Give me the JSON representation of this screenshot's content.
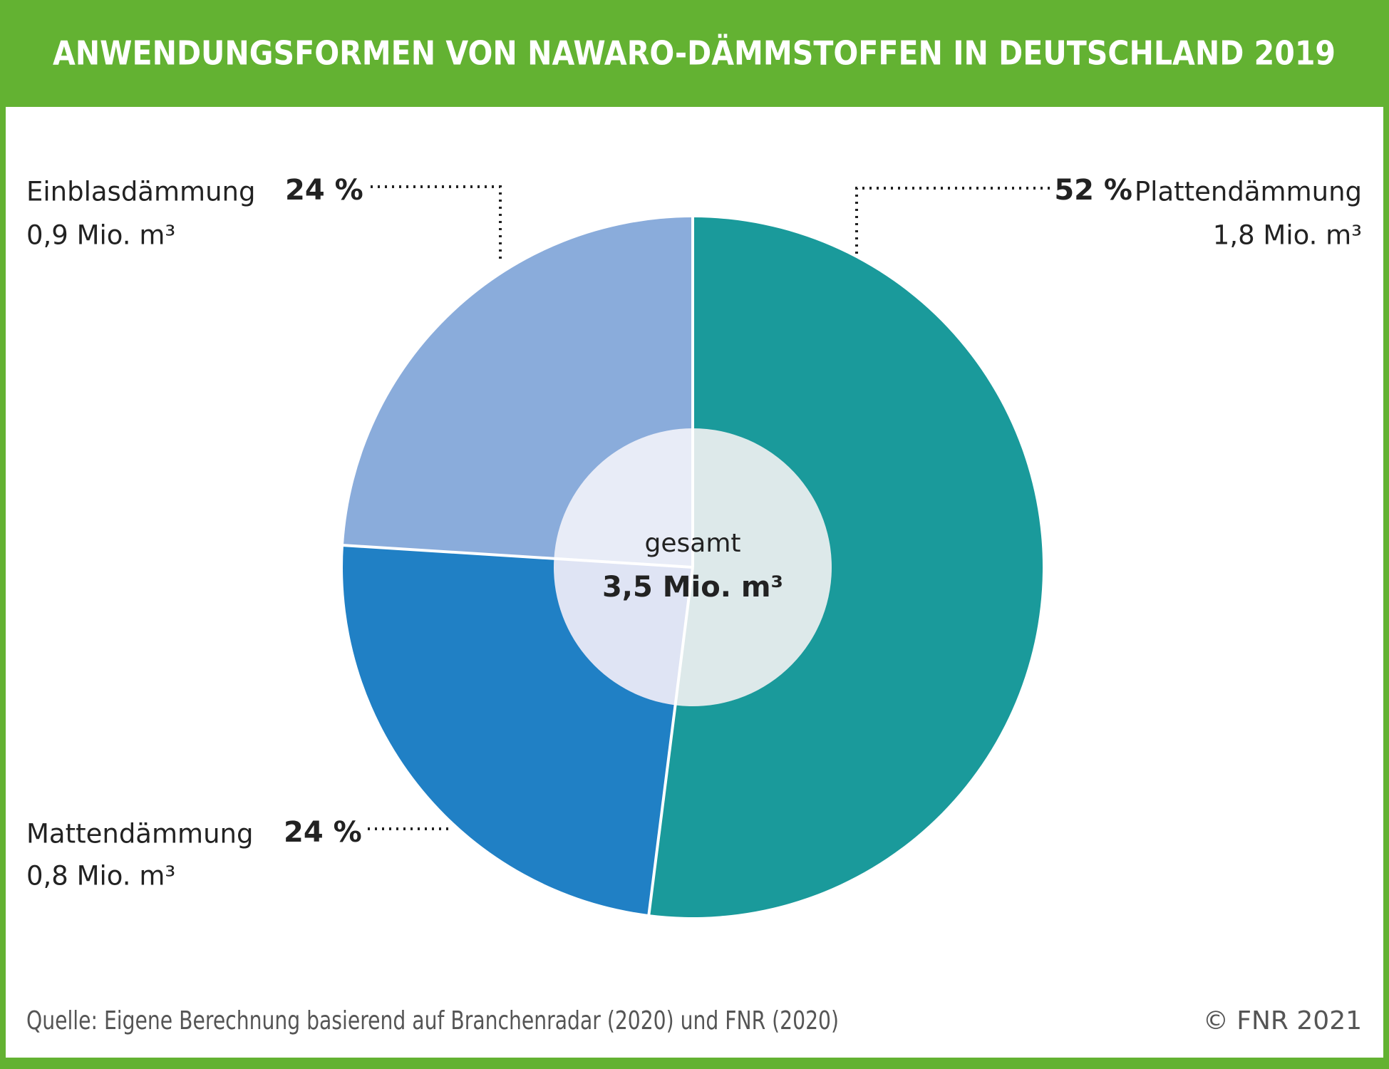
{
  "chart_data": {
    "type": "donut",
    "title": "ANWENDUNGSFORMEN VON NAWARO-DÄMMSTOFFEN IN DEUTSCHLAND 2019",
    "categories": [
      "Plattendämmung",
      "Mattendämmung",
      "Einblasdämmung"
    ],
    "values": [
      52,
      24,
      24
    ],
    "value_labels": [
      "52 %",
      "24 %",
      "24 %"
    ],
    "volume_labels": [
      "1,8 Mio. m³",
      "0,8 Mio. m³",
      "0,9 Mio. m³"
    ],
    "colors": [
      "#1a9a9b",
      "#2080c5",
      "#8aacdb"
    ],
    "inner_colors": [
      "#dde9ea",
      "#dfe4f4",
      "#e8ecf7"
    ],
    "center_label": "gesamt",
    "center_value": "3,5 Mio. m³",
    "source": "Quelle: Eigene Berechnung basierend auf Branchenradar (2020) und FNR (2020)",
    "copyright": "© FNR 2021"
  }
}
